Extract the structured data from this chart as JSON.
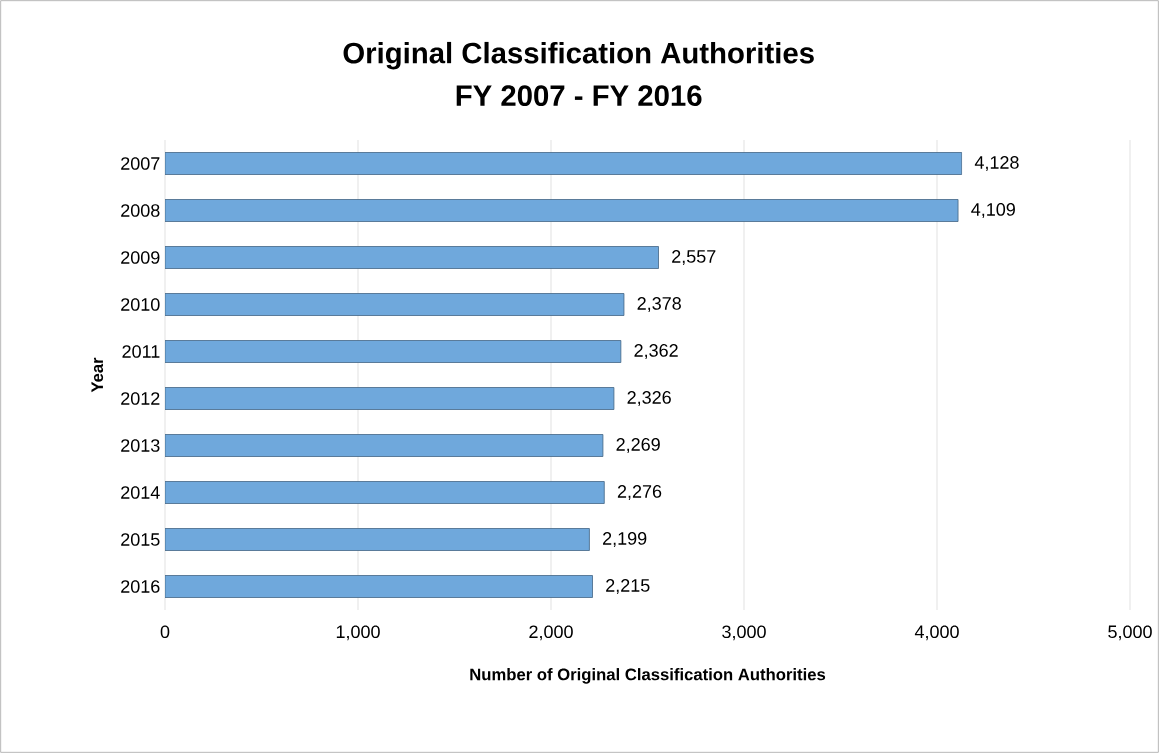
{
  "chart_data": {
    "type": "bar",
    "orientation": "horizontal",
    "title": "Original Classification Authorities",
    "subtitle": "FY 2007 - FY 2016",
    "xlabel": "Number of Original Classification Authorities",
    "ylabel": "Year",
    "categories": [
      "2007",
      "2008",
      "2009",
      "2010",
      "2011",
      "2012",
      "2013",
      "2014",
      "2015",
      "2016"
    ],
    "values": [
      4128,
      4109,
      2557,
      2378,
      2362,
      2326,
      2269,
      2276,
      2199,
      2215
    ],
    "value_labels": [
      "4,128",
      "4,109",
      "2,557",
      "2,378",
      "2,362",
      "2,326",
      "2,269",
      "2,276",
      "2,199",
      "2,215"
    ],
    "color": "#6fa8dc",
    "xlim": [
      0,
      5000
    ],
    "xticks": [
      0,
      {
        "value": 1000,
        "label": "1,000"
      },
      {
        "value": 2000,
        "label": "2,000"
      },
      {
        "value": 3000,
        "label": "3,000"
      },
      {
        "value": 4000,
        "label": "4,000"
      },
      {
        "value": 5000,
        "label": "5,000"
      }
    ],
    "grid": "x"
  }
}
